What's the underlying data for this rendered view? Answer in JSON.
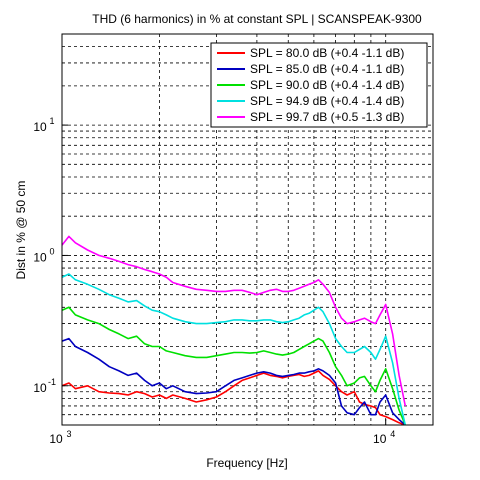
{
  "chart_data": {
    "type": "line",
    "title": "THD (6 harmonics) in % at constant SPL | SCANSPEAK-9300",
    "xlabel": "Frequency [Hz]",
    "ylabel": "Dist in % @ 50 cm",
    "x_scale": "log",
    "y_scale": "log",
    "xlim": [
      1000,
      14000
    ],
    "ylim": [
      0.05,
      50
    ],
    "grid": true,
    "x_major_ticks": [
      {
        "value": 1000,
        "base": "10",
        "exp": "3"
      },
      {
        "value": 10000,
        "base": "10",
        "exp": "4"
      }
    ],
    "y_major_ticks": [
      {
        "value": 0.1,
        "base": "10",
        "exp": "-1"
      },
      {
        "value": 1,
        "base": "10",
        "exp": "0"
      },
      {
        "value": 10,
        "base": "10",
        "exp": "1"
      }
    ],
    "legend_position": "top-right",
    "series": [
      {
        "name": "SPL = 80.0 dB (+0.4 -1.1 dB)",
        "color": "#ff0000",
        "x": [
          1000,
          1050,
          1100,
          1200,
          1300,
          1400,
          1500,
          1600,
          1700,
          1800,
          1900,
          2000,
          2100,
          2200,
          2400,
          2600,
          2800,
          3000,
          3200,
          3400,
          3600,
          3800,
          4000,
          4200,
          4400,
          4600,
          4800,
          5000,
          5200,
          5400,
          5600,
          5800,
          6000,
          6200,
          6400,
          6700,
          7000,
          7300,
          7600,
          8000,
          8300,
          8600,
          9000,
          9300,
          9600,
          10000,
          10500,
          11000,
          11500
        ],
        "y": [
          0.1,
          0.105,
          0.095,
          0.1,
          0.09,
          0.088,
          0.087,
          0.085,
          0.09,
          0.087,
          0.082,
          0.085,
          0.08,
          0.085,
          0.08,
          0.075,
          0.078,
          0.082,
          0.09,
          0.1,
          0.11,
          0.115,
          0.12,
          0.125,
          0.12,
          0.118,
          0.115,
          0.118,
          0.12,
          0.122,
          0.118,
          0.12,
          0.125,
          0.13,
          0.12,
          0.112,
          0.1,
          0.09,
          0.085,
          0.09,
          0.075,
          0.072,
          0.07,
          0.068,
          0.06,
          0.058,
          0.055,
          0.052,
          0.05
        ]
      },
      {
        "name": "SPL = 85.0 dB (+0.4 -1.1 dB)",
        "color": "#0000c0",
        "x": [
          1000,
          1050,
          1100,
          1200,
          1300,
          1400,
          1500,
          1600,
          1700,
          1800,
          1900,
          2000,
          2100,
          2200,
          2400,
          2600,
          2800,
          3000,
          3200,
          3400,
          3600,
          3800,
          4000,
          4200,
          4400,
          4600,
          4800,
          5000,
          5200,
          5400,
          5600,
          5800,
          6000,
          6200,
          6400,
          6700,
          7000,
          7300,
          7600,
          8000,
          8300,
          8600,
          9000,
          9300,
          9600,
          10000,
          10500,
          11000,
          11500
        ],
        "y": [
          0.22,
          0.23,
          0.2,
          0.18,
          0.16,
          0.14,
          0.13,
          0.12,
          0.125,
          0.11,
          0.1,
          0.105,
          0.095,
          0.1,
          0.09,
          0.087,
          0.088,
          0.09,
          0.1,
          0.11,
          0.115,
          0.12,
          0.125,
          0.128,
          0.125,
          0.12,
          0.118,
          0.12,
          0.122,
          0.125,
          0.125,
          0.128,
          0.13,
          0.135,
          0.13,
          0.12,
          0.105,
          0.07,
          0.062,
          0.06,
          0.068,
          0.075,
          0.06,
          0.06,
          0.075,
          0.085,
          0.062,
          0.055,
          0.05
        ]
      },
      {
        "name": "SPL = 90.0 dB (+0.4 -1.4 dB)",
        "color": "#00e000",
        "x": [
          1000,
          1050,
          1100,
          1200,
          1300,
          1400,
          1500,
          1600,
          1700,
          1800,
          1900,
          2000,
          2100,
          2200,
          2400,
          2600,
          2800,
          3000,
          3200,
          3400,
          3600,
          3800,
          4000,
          4200,
          4400,
          4600,
          4800,
          5000,
          5200,
          5400,
          5600,
          5800,
          6000,
          6200,
          6400,
          6700,
          7000,
          7300,
          7600,
          8000,
          8300,
          8600,
          9000,
          9300,
          9600,
          10000,
          10500,
          11000,
          11500
        ],
        "y": [
          0.38,
          0.4,
          0.35,
          0.32,
          0.3,
          0.27,
          0.25,
          0.23,
          0.24,
          0.21,
          0.2,
          0.2,
          0.185,
          0.18,
          0.17,
          0.165,
          0.165,
          0.17,
          0.175,
          0.18,
          0.18,
          0.178,
          0.18,
          0.185,
          0.18,
          0.175,
          0.172,
          0.175,
          0.18,
          0.19,
          0.2,
          0.21,
          0.22,
          0.23,
          0.22,
          0.18,
          0.14,
          0.12,
          0.1,
          0.105,
          0.115,
          0.118,
          0.1,
          0.09,
          0.11,
          0.135,
          0.095,
          0.065,
          0.05
        ]
      },
      {
        "name": "SPL = 94.9 dB (+0.4 -1.4 dB)",
        "color": "#00e0e0",
        "x": [
          1000,
          1050,
          1100,
          1200,
          1300,
          1400,
          1500,
          1600,
          1700,
          1800,
          1900,
          2000,
          2100,
          2200,
          2400,
          2600,
          2800,
          3000,
          3200,
          3400,
          3600,
          3800,
          4000,
          4200,
          4400,
          4600,
          4800,
          5000,
          5200,
          5400,
          5600,
          5800,
          6000,
          6200,
          6400,
          6700,
          7000,
          7300,
          7600,
          8000,
          8300,
          8600,
          9000,
          9300,
          9600,
          10000,
          10500,
          11000,
          11500
        ],
        "y": [
          0.68,
          0.72,
          0.65,
          0.6,
          0.55,
          0.5,
          0.47,
          0.44,
          0.45,
          0.41,
          0.38,
          0.37,
          0.35,
          0.33,
          0.31,
          0.3,
          0.3,
          0.305,
          0.31,
          0.32,
          0.32,
          0.315,
          0.315,
          0.32,
          0.32,
          0.31,
          0.305,
          0.31,
          0.32,
          0.33,
          0.35,
          0.36,
          0.38,
          0.4,
          0.37,
          0.3,
          0.23,
          0.2,
          0.18,
          0.18,
          0.19,
          0.2,
          0.18,
          0.16,
          0.19,
          0.24,
          0.15,
          0.08,
          0.05
        ]
      },
      {
        "name": "SPL = 99.7 dB (+0.5 -1.3 dB)",
        "color": "#ff00ff",
        "x": [
          1000,
          1050,
          1100,
          1200,
          1300,
          1400,
          1500,
          1600,
          1700,
          1800,
          1900,
          2000,
          2100,
          2200,
          2400,
          2600,
          2800,
          3000,
          3200,
          3400,
          3600,
          3800,
          4000,
          4200,
          4400,
          4600,
          4800,
          5000,
          5200,
          5400,
          5600,
          5800,
          6000,
          6200,
          6400,
          6700,
          7000,
          7300,
          7600,
          8000,
          8300,
          8600,
          9000,
          9300,
          9600,
          10000,
          10500,
          11000,
          11500
        ],
        "y": [
          1.2,
          1.4,
          1.25,
          1.1,
          1.0,
          0.95,
          0.9,
          0.85,
          0.82,
          0.78,
          0.75,
          0.72,
          0.68,
          0.62,
          0.58,
          0.55,
          0.54,
          0.53,
          0.53,
          0.54,
          0.54,
          0.52,
          0.5,
          0.52,
          0.54,
          0.55,
          0.53,
          0.53,
          0.54,
          0.56,
          0.58,
          0.6,
          0.62,
          0.65,
          0.6,
          0.52,
          0.4,
          0.33,
          0.3,
          0.31,
          0.32,
          0.33,
          0.31,
          0.3,
          0.35,
          0.42,
          0.25,
          0.12,
          0.07
        ]
      }
    ]
  }
}
